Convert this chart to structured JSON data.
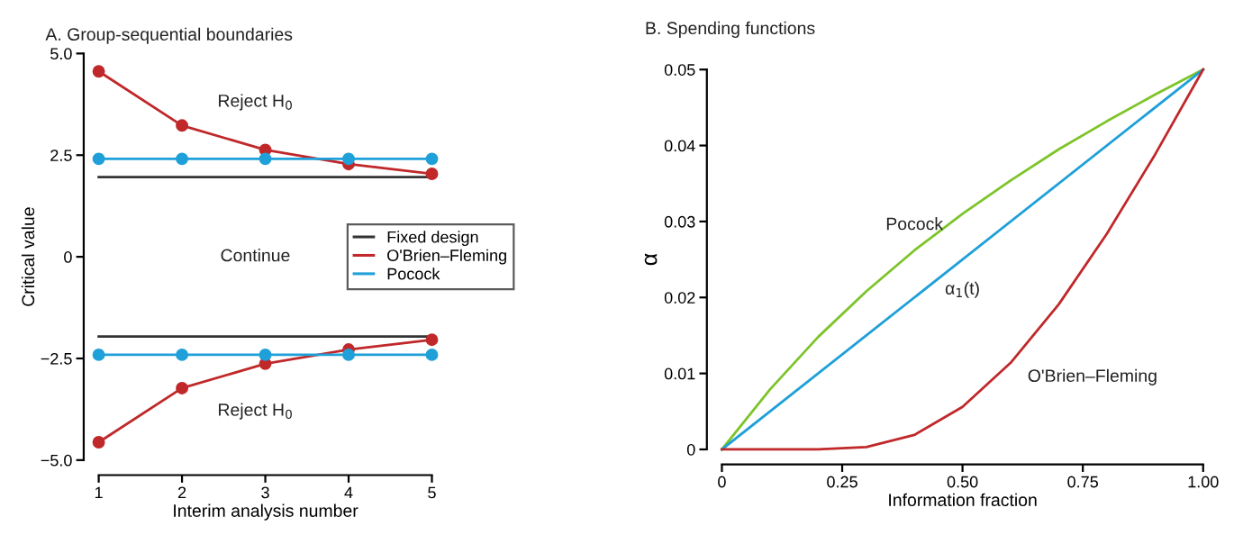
{
  "chart_data": [
    {
      "type": "line",
      "title": "A. Group-sequential boundaries",
      "xlabel": "Interim analysis number",
      "ylabel": "Critical value",
      "x": [
        1,
        2,
        3,
        4,
        5
      ],
      "series": [
        {
          "name": "Fixed design",
          "color": "#333333",
          "values": [
            1.96,
            1.96,
            1.96,
            1.96,
            1.96
          ],
          "marker": "none"
        },
        {
          "color": "#333333",
          "values": [
            -1.96,
            -1.96,
            -1.96,
            -1.96,
            -1.96
          ],
          "marker": "none"
        },
        {
          "name": "O'Brien–Fleming",
          "color": "#c0282a",
          "values": [
            4.56,
            3.23,
            2.63,
            2.28,
            2.04
          ],
          "marker": "circle"
        },
        {
          "color": "#c0282a",
          "values": [
            -4.56,
            -3.23,
            -2.63,
            -2.28,
            -2.04
          ],
          "marker": "circle"
        },
        {
          "name": "Pocock",
          "color": "#1fa0d8",
          "values": [
            2.41,
            2.41,
            2.41,
            2.41,
            2.41
          ],
          "marker": "circle"
        },
        {
          "color": "#1fa0d8",
          "values": [
            -2.41,
            -2.41,
            -2.41,
            -2.41,
            -2.41
          ],
          "marker": "circle"
        }
      ],
      "xlim": [
        1,
        5
      ],
      "xticks": [
        1,
        2,
        3,
        4,
        5
      ],
      "ylim": [
        -5,
        5
      ],
      "yticks": [
        {
          "value": -5,
          "label": "−5.0"
        },
        {
          "value": -2.5,
          "label": "−2.5"
        },
        0,
        {
          "value": 2.5,
          "label": "2.5"
        },
        {
          "value": 5,
          "label": "5.0"
        }
      ],
      "annotations": [
        "Reject H$_{0}$",
        "Continue",
        "Reject H$_{0}$"
      ],
      "legend": "right",
      "grid": false
    },
    {
      "type": "line",
      "title": "B. Spending functions",
      "xlabel": "Information fraction",
      "ylabel": "α",
      "x": [
        0,
        0.1,
        0.2,
        0.3,
        0.4,
        0.5,
        0.6,
        0.7,
        0.8,
        0.9,
        1
      ],
      "series": [
        {
          "color": "#7dc42a",
          "values": [
            0,
            0.0079,
            0.0148,
            0.0208,
            0.0262,
            0.031,
            0.0354,
            0.0395,
            0.0432,
            0.0467,
            0.05
          ]
        },
        {
          "color": "#1fa0d8",
          "x": [
            0,
            1
          ],
          "values": [
            0,
            0.05
          ]
        },
        {
          "color": "#c0282a",
          "values": [
            0,
            0,
            0,
            0.0003,
            0.0019,
            0.0056,
            0.0114,
            0.0191,
            0.0284,
            0.0388,
            0.05
          ]
        }
      ],
      "xlim": [
        0,
        1
      ],
      "xticks": [
        0,
        {
          "value": 0.25,
          "label": "0.25"
        },
        {
          "value": 0.5,
          "label": "0.50"
        },
        {
          "value": 0.75,
          "label": "0.75"
        },
        {
          "value": 1,
          "label": "1.00"
        }
      ],
      "ylim": [
        0,
        0.05
      ],
      "yticks": [
        0,
        0.01,
        0.02,
        0.03,
        0.04,
        0.05
      ],
      "annotations": [
        "Pocock",
        "α$_{1}$(t)",
        "O'Brien–Fleming"
      ],
      "legend": false,
      "grid": false
    }
  ]
}
